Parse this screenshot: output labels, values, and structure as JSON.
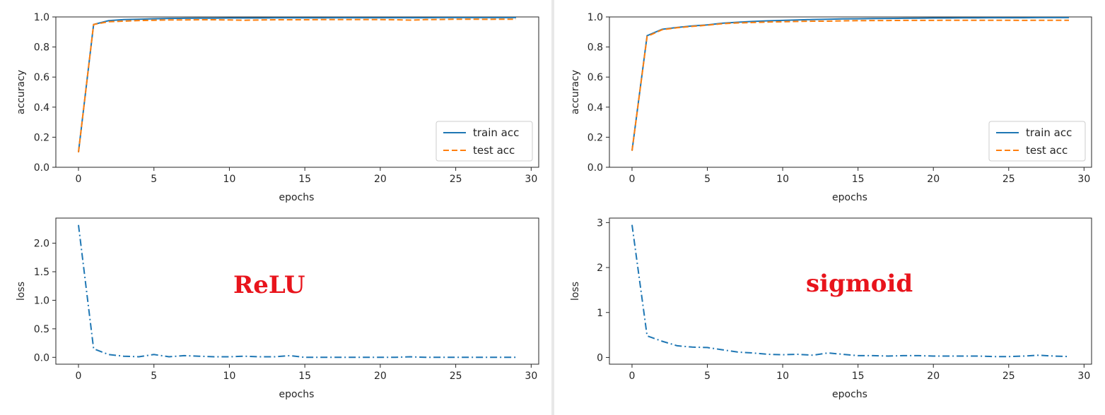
{
  "panels": [
    {
      "id": "relu",
      "overlay_label": "ReLU",
      "overlay_color": "#e8141c"
    },
    {
      "id": "sigmoid",
      "overlay_label": "sigmoid",
      "overlay_color": "#e8141c"
    }
  ],
  "colors": {
    "series_blue": "#1f77b4",
    "series_orange": "#ff7f0e"
  },
  "chart_data": [
    {
      "type": "line",
      "panel": "relu",
      "xlabel": "epochs",
      "ylabel": "accuracy",
      "xlim": [
        -1.5,
        30.5
      ],
      "ylim": [
        0.0,
        1.0
      ],
      "xticks": [
        0,
        5,
        10,
        15,
        20,
        25,
        30
      ],
      "yticks": [
        0.0,
        0.2,
        0.4,
        0.6,
        0.8,
        1.0
      ],
      "ytick_labels": [
        "0.0",
        "0.2",
        "0.4",
        "0.6",
        "0.8",
        "1.0"
      ],
      "legend": "lower right",
      "series": [
        {
          "name": "train acc",
          "style": "solid",
          "color": "#1f77b4",
          "x": [
            0,
            1,
            2,
            3,
            4,
            5,
            6,
            7,
            8,
            9,
            10,
            11,
            12,
            13,
            14,
            15,
            16,
            17,
            18,
            19,
            20,
            21,
            22,
            23,
            24,
            25,
            26,
            27,
            28,
            29
          ],
          "values": [
            0.1,
            0.95,
            0.975,
            0.982,
            0.985,
            0.988,
            0.99,
            0.991,
            0.992,
            0.992,
            0.993,
            0.993,
            0.993,
            0.994,
            0.994,
            0.994,
            0.994,
            0.995,
            0.995,
            0.995,
            0.995,
            0.995,
            0.995,
            0.995,
            0.996,
            0.996,
            0.996,
            0.996,
            0.996,
            0.996
          ]
        },
        {
          "name": "test acc",
          "style": "dashed",
          "color": "#ff7f0e",
          "x": [
            0,
            1,
            2,
            3,
            4,
            5,
            6,
            7,
            8,
            9,
            10,
            11,
            12,
            13,
            14,
            15,
            16,
            17,
            18,
            19,
            20,
            21,
            22,
            23,
            24,
            25,
            26,
            27,
            28,
            29
          ],
          "values": [
            0.1,
            0.95,
            0.968,
            0.972,
            0.976,
            0.978,
            0.98,
            0.98,
            0.981,
            0.981,
            0.98,
            0.978,
            0.98,
            0.981,
            0.981,
            0.981,
            0.982,
            0.982,
            0.982,
            0.982,
            0.982,
            0.981,
            0.979,
            0.982,
            0.983,
            0.985,
            0.985,
            0.984,
            0.985,
            0.985
          ]
        }
      ]
    },
    {
      "type": "line",
      "panel": "relu",
      "xlabel": "epochs",
      "ylabel": "loss",
      "xlim": [
        -1.5,
        30.5
      ],
      "ylim": [
        -0.12,
        2.44
      ],
      "xticks": [
        0,
        5,
        10,
        15,
        20,
        25,
        30
      ],
      "yticks": [
        0.0,
        0.5,
        1.0,
        1.5,
        2.0
      ],
      "ytick_labels": [
        "0.0",
        "0.5",
        "1.0",
        "1.5",
        "2.0"
      ],
      "series": [
        {
          "style": "dashdot",
          "color": "#1f77b4",
          "x": [
            0,
            1,
            2,
            3,
            4,
            5,
            6,
            7,
            8,
            9,
            10,
            11,
            12,
            13,
            14,
            15,
            16,
            17,
            18,
            19,
            20,
            21,
            22,
            23,
            24,
            25,
            26,
            27,
            28,
            29
          ],
          "values": [
            2.32,
            0.15,
            0.05,
            0.02,
            0.01,
            0.05,
            0.01,
            0.03,
            0.02,
            0.01,
            0.01,
            0.02,
            0.01,
            0.01,
            0.03,
            0.0,
            0.0,
            0.0,
            0.0,
            0.0,
            0.0,
            0.0,
            0.01,
            0.0,
            0.0,
            0.0,
            0.0,
            0.0,
            0.0,
            0.0
          ]
        }
      ]
    },
    {
      "type": "line",
      "panel": "sigmoid",
      "xlabel": "epochs",
      "ylabel": "accuracy",
      "xlim": [
        -1.5,
        30.5
      ],
      "ylim": [
        0.0,
        1.0
      ],
      "xticks": [
        0,
        5,
        10,
        15,
        20,
        25,
        30
      ],
      "yticks": [
        0.0,
        0.2,
        0.4,
        0.6,
        0.8,
        1.0
      ],
      "ytick_labels": [
        "0.0",
        "0.2",
        "0.4",
        "0.6",
        "0.8",
        "1.0"
      ],
      "legend": "lower right",
      "series": [
        {
          "name": "train acc",
          "style": "solid",
          "color": "#1f77b4",
          "x": [
            0,
            1,
            2,
            3,
            4,
            5,
            6,
            7,
            8,
            9,
            10,
            11,
            12,
            13,
            14,
            15,
            16,
            17,
            18,
            19,
            20,
            21,
            22,
            23,
            24,
            25,
            26,
            27,
            28,
            29
          ],
          "values": [
            0.11,
            0.875,
            0.918,
            0.93,
            0.94,
            0.947,
            0.958,
            0.965,
            0.97,
            0.974,
            0.977,
            0.98,
            0.983,
            0.985,
            0.987,
            0.988,
            0.989,
            0.99,
            0.991,
            0.992,
            0.993,
            0.993,
            0.994,
            0.994,
            0.995,
            0.995,
            0.995,
            0.996,
            0.996,
            0.996
          ]
        },
        {
          "name": "test acc",
          "style": "dashed",
          "color": "#ff7f0e",
          "x": [
            0,
            1,
            2,
            3,
            4,
            5,
            6,
            7,
            8,
            9,
            10,
            11,
            12,
            13,
            14,
            15,
            16,
            17,
            18,
            19,
            20,
            21,
            22,
            23,
            24,
            25,
            26,
            27,
            28,
            29
          ],
          "values": [
            0.11,
            0.87,
            0.915,
            0.928,
            0.937,
            0.945,
            0.955,
            0.96,
            0.963,
            0.966,
            0.968,
            0.97,
            0.972,
            0.972,
            0.974,
            0.975,
            0.976,
            0.976,
            0.977,
            0.977,
            0.977,
            0.978,
            0.978,
            0.978,
            0.978,
            0.978,
            0.977,
            0.978,
            0.978,
            0.978
          ]
        }
      ]
    },
    {
      "type": "line",
      "panel": "sigmoid",
      "xlabel": "epochs",
      "ylabel": "loss",
      "xlim": [
        -1.5,
        30.5
      ],
      "ylim": [
        -0.15,
        3.1
      ],
      "xticks": [
        0,
        5,
        10,
        15,
        20,
        25,
        30
      ],
      "yticks": [
        0,
        1,
        2,
        3
      ],
      "ytick_labels": [
        "0",
        "1",
        "2",
        "3"
      ],
      "series": [
        {
          "style": "dashdot",
          "color": "#1f77b4",
          "x": [
            0,
            1,
            2,
            3,
            4,
            5,
            6,
            7,
            8,
            9,
            10,
            11,
            12,
            13,
            14,
            15,
            16,
            17,
            18,
            19,
            20,
            21,
            22,
            23,
            24,
            25,
            26,
            27,
            28,
            29
          ],
          "values": [
            2.95,
            0.48,
            0.36,
            0.26,
            0.23,
            0.22,
            0.17,
            0.12,
            0.1,
            0.07,
            0.06,
            0.07,
            0.05,
            0.1,
            0.07,
            0.04,
            0.04,
            0.03,
            0.04,
            0.04,
            0.03,
            0.03,
            0.03,
            0.03,
            0.02,
            0.02,
            0.03,
            0.05,
            0.03,
            0.02
          ]
        }
      ]
    }
  ]
}
